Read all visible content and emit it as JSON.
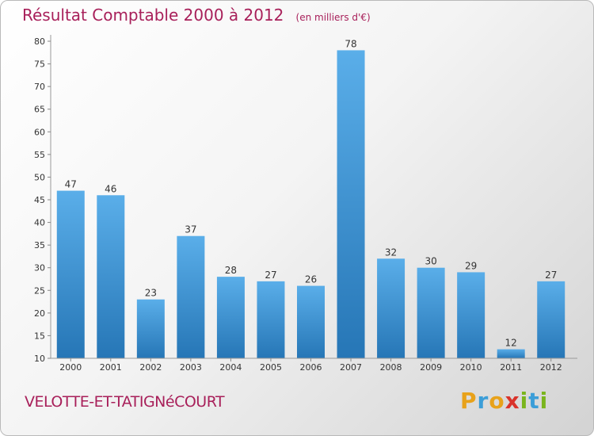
{
  "title": "Résultat Comptable 2000 à 2012",
  "subtitle": "(en milliers d'€)",
  "commune": "VELOTTE-ET-TATIGNéCOURT",
  "logo": {
    "letters": [
      "P",
      "r",
      "o",
      "x",
      "i",
      "t",
      "i"
    ],
    "colors": [
      "#e8a21a",
      "#3c9ed8",
      "#e8a21a",
      "#d9332b",
      "#7ab51d",
      "#3c9ed8",
      "#7ab51d"
    ]
  },
  "colors": {
    "bar_top": "#5aaee9",
    "bar_bottom": "#2676b6",
    "accent": "#a8205a"
  },
  "chart_data": {
    "type": "bar",
    "title": "Résultat Comptable 2000 à 2012",
    "subtitle": "(en milliers d'€)",
    "xlabel": "",
    "ylabel": "",
    "categories": [
      "2000",
      "2001",
      "2002",
      "2003",
      "2004",
      "2005",
      "2006",
      "2007",
      "2008",
      "2009",
      "2010",
      "2011",
      "2012"
    ],
    "values": [
      47,
      46,
      23,
      37,
      28,
      27,
      26,
      78,
      32,
      30,
      29,
      12,
      27
    ],
    "ylim": [
      10,
      80
    ],
    "yticks": [
      10,
      15,
      20,
      25,
      30,
      35,
      40,
      45,
      50,
      55,
      60,
      65,
      70,
      75,
      80
    ],
    "grid": false,
    "data_labels": true
  }
}
